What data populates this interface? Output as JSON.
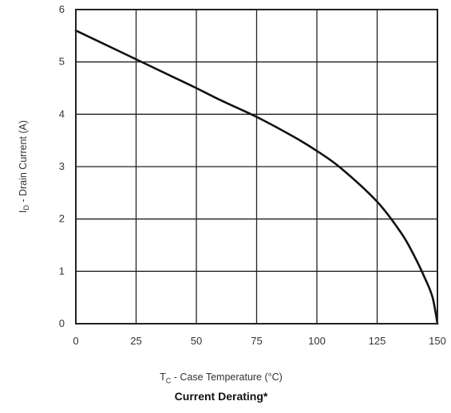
{
  "chart_data": {
    "type": "line",
    "title": "Current Derating*",
    "xlabel": {
      "main": "T",
      "sub": "C",
      "rest": " - Case Temperature (°C)"
    },
    "ylabel": {
      "main": "I",
      "sub": "D",
      "rest": " - Drain Current (A)"
    },
    "xlim": [
      0,
      150
    ],
    "ylim": [
      0,
      6
    ],
    "x_ticks": [
      "0",
      "25",
      "50",
      "75",
      "100",
      "125",
      "150"
    ],
    "y_ticks": [
      "0",
      "1",
      "2",
      "3",
      "4",
      "5",
      "6"
    ],
    "grid": true,
    "series": [
      {
        "x": [
          0,
          10,
          25,
          40,
          50,
          60,
          75,
          90,
          100,
          110,
          125,
          135,
          140,
          145,
          148,
          150
        ],
        "values": [
          5.6,
          5.38,
          5.05,
          4.72,
          4.5,
          4.27,
          3.95,
          3.58,
          3.3,
          2.97,
          2.33,
          1.73,
          1.33,
          0.85,
          0.5,
          0.0
        ]
      }
    ]
  }
}
